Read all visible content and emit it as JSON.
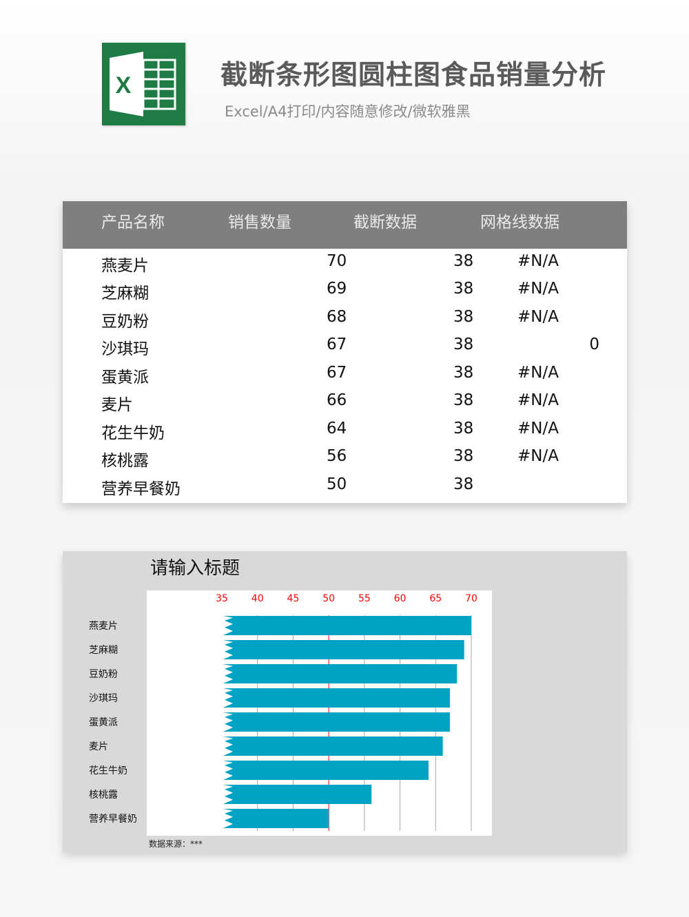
{
  "header": {
    "title": "截断条形图圆柱图食品销量分析",
    "subtitle": "Excel/A4打印/内容随意修改/微软雅黑"
  },
  "table": {
    "columns": [
      "产品名称",
      "销售数量",
      "截断数据",
      "网格线数据"
    ],
    "rows": [
      {
        "name": "燕麦片",
        "sales": "70",
        "cut": "38",
        "grid": "#N/A"
      },
      {
        "name": "芝麻糊",
        "sales": "69",
        "cut": "38",
        "grid": "#N/A"
      },
      {
        "name": "豆奶粉",
        "sales": "68",
        "cut": "38",
        "grid": "#N/A"
      },
      {
        "name": "沙琪玛",
        "sales": "67",
        "cut": "38",
        "grid": "0"
      },
      {
        "name": "蛋黄派",
        "sales": "67",
        "cut": "38",
        "grid": "#N/A"
      },
      {
        "name": "麦片",
        "sales": "66",
        "cut": "38",
        "grid": "#N/A"
      },
      {
        "name": "花生牛奶",
        "sales": "64",
        "cut": "38",
        "grid": "#N/A"
      },
      {
        "name": "核桃露",
        "sales": "56",
        "cut": "38",
        "grid": "#N/A"
      },
      {
        "name": "营养早餐奶",
        "sales": "50",
        "cut": "38",
        "grid": ""
      }
    ]
  },
  "chart_data": {
    "type": "bar",
    "title": "请输入标题",
    "source": "数据来源：***",
    "categories": [
      "燕麦片",
      "芝麻糊",
      "豆奶粉",
      "沙琪玛",
      "蛋黄派",
      "麦片",
      "花生牛奶",
      "核桃露",
      "营养早餐奶"
    ],
    "values": [
      70,
      69,
      68,
      67,
      67,
      66,
      64,
      56,
      50
    ],
    "xlim": [
      35,
      70
    ],
    "xticks": [
      "35",
      "40",
      "45",
      "50",
      "55",
      "60",
      "65",
      "70"
    ],
    "highlight_gridline": 50,
    "orientation": "horizontal",
    "axis_position": "top",
    "bar_color": "#00a3c4",
    "tick_label_color": "#ff0000",
    "gridline_color": "#a6a6a6",
    "highlight_gridline_color": "#ff0000",
    "grid": true,
    "legend": "none"
  }
}
